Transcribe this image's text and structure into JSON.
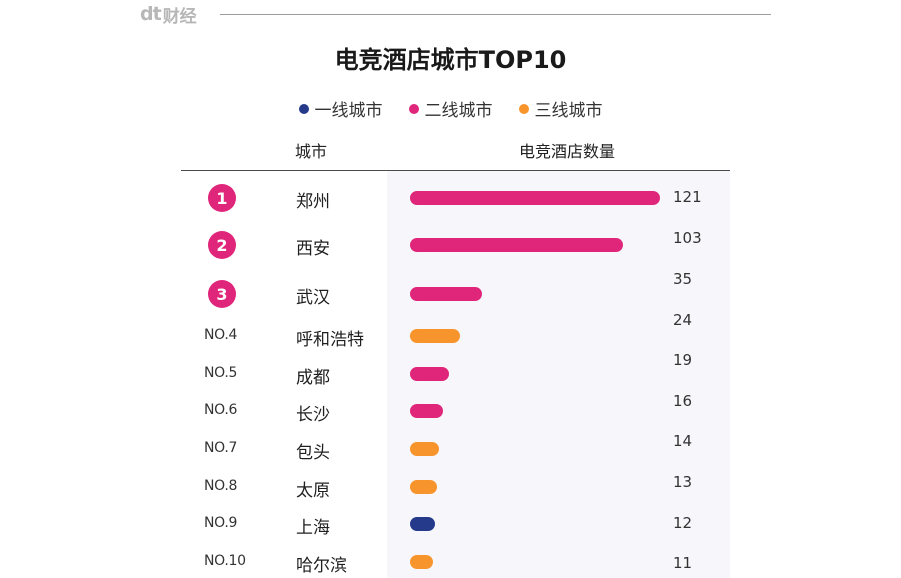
{
  "brand": {
    "logo": "dt",
    "name": "财经"
  },
  "colors": {
    "tier1": "#263a8c",
    "tier2": "#e0267a",
    "tier3": "#f7952c"
  },
  "chart_data": {
    "type": "bar",
    "orientation": "horizontal",
    "title": "电竞酒店城市TOP10",
    "legend": [
      {
        "label": "一线城市",
        "tier": "tier1"
      },
      {
        "label": "二线城市",
        "tier": "tier2"
      },
      {
        "label": "三线城市",
        "tier": "tier3"
      }
    ],
    "legend_position": "top-center",
    "columns": {
      "city": "城市",
      "count": "电竞酒店数量"
    },
    "rows": [
      {
        "rank": "1",
        "rank_style": "badge",
        "city": "郑州",
        "value": 121,
        "tier": "tier2"
      },
      {
        "rank": "2",
        "rank_style": "badge",
        "city": "西安",
        "value": 103,
        "tier": "tier2"
      },
      {
        "rank": "3",
        "rank_style": "badge",
        "city": "武汉",
        "value": 35,
        "tier": "tier2"
      },
      {
        "rank": "NO.4",
        "rank_style": "text",
        "city": "呼和浩特",
        "value": 24,
        "tier": "tier3"
      },
      {
        "rank": "NO.5",
        "rank_style": "text",
        "city": "成都",
        "value": 19,
        "tier": "tier2"
      },
      {
        "rank": "NO.6",
        "rank_style": "text",
        "city": "长沙",
        "value": 16,
        "tier": "tier2"
      },
      {
        "rank": "NO.7",
        "rank_style": "text",
        "city": "包头",
        "value": 14,
        "tier": "tier3"
      },
      {
        "rank": "NO.8",
        "rank_style": "text",
        "city": "太原",
        "value": 13,
        "tier": "tier3"
      },
      {
        "rank": "NO.9",
        "rank_style": "text",
        "city": "上海",
        "value": 12,
        "tier": "tier1"
      },
      {
        "rank": "NO.10",
        "rank_style": "text",
        "city": "哈尔滨",
        "value": 11,
        "tier": "tier3"
      }
    ],
    "xlim": [
      0,
      121
    ],
    "grid": false
  }
}
